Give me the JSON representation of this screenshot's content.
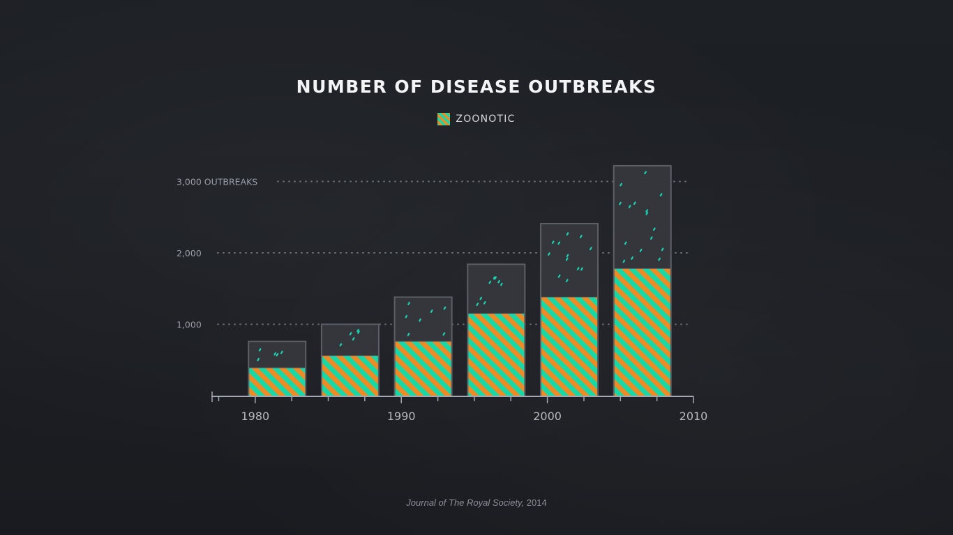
{
  "chart_data": {
    "type": "bar",
    "title": "NUMBER OF DISEASE OUTBREAKS",
    "legend": [
      {
        "name": "ZOONOTIC",
        "pattern": "stripes-orange-teal"
      }
    ],
    "ytick_labels": [
      "1,000",
      "2,000",
      "3,000 OUTBREAKS"
    ],
    "yticks": [
      1000,
      2000,
      3000
    ],
    "ylim": [
      0,
      3300
    ],
    "xtick_labels": [
      "1980",
      "1990",
      "2000",
      "2010"
    ],
    "xticks": [
      1980,
      1990,
      2000,
      2010
    ],
    "xlim": [
      1977,
      2010
    ],
    "bars": [
      {
        "x": 1981.5,
        "total": 760,
        "zoonotic": 390
      },
      {
        "x": 1986.5,
        "total": 1000,
        "zoonotic": 560
      },
      {
        "x": 1991.5,
        "total": 1380,
        "zoonotic": 760
      },
      {
        "x": 1996.5,
        "total": 1840,
        "zoonotic": 1150
      },
      {
        "x": 2001.5,
        "total": 2410,
        "zoonotic": 1380
      },
      {
        "x": 2006.5,
        "total": 3220,
        "zoonotic": 1780
      }
    ],
    "grid": "dotted horizontal at y ticks",
    "legend_position": "top-center"
  },
  "source": {
    "journal": "Journal of The Royal Society,",
    "year": "2014"
  },
  "colors": {
    "background": "#1c1f24",
    "bar_fill": "#34363c",
    "bar_border": "#5c5f66",
    "stripe_orange": "#f08a24",
    "stripe_teal": "#17d9a7",
    "dot_teal": "#19d3b0",
    "axis": "#a4a8b0",
    "grid": "#6b6f77"
  }
}
